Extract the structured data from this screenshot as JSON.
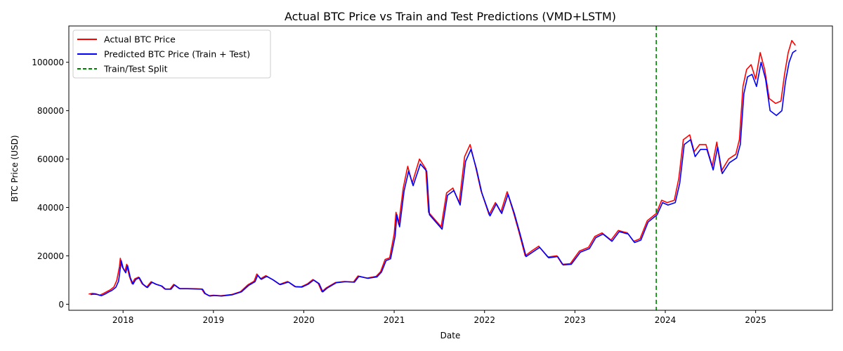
{
  "chart_data": {
    "type": "line",
    "title": "Actual BTC Price vs Train and Test Predictions (VMD+LSTM)",
    "xlabel": "Date",
    "ylabel": "BTC Price (USD)",
    "xlim": [
      2017.4,
      2025.85
    ],
    "ylim": [
      -2500,
      115000
    ],
    "x_ticks": [
      2018,
      2019,
      2020,
      2021,
      2022,
      2023,
      2024,
      2025
    ],
    "x_tick_labels": [
      "2018",
      "2019",
      "2020",
      "2021",
      "2022",
      "2023",
      "2024",
      "2025"
    ],
    "y_ticks": [
      0,
      20000,
      40000,
      60000,
      80000,
      100000
    ],
    "y_tick_labels": [
      "0",
      "20000",
      "40000",
      "60000",
      "80000",
      "100000"
    ],
    "grid": false,
    "legend_position": "top-left",
    "split": {
      "label": "Train/Test Split",
      "x": 2023.9,
      "color": "#008000"
    },
    "series": [
      {
        "name": "Actual BTC Price",
        "color": "#ff0000",
        "points": [
          [
            2017.62,
            4200
          ],
          [
            2017.66,
            4500
          ],
          [
            2017.7,
            4300
          ],
          [
            2017.74,
            3700
          ],
          [
            2017.78,
            4400
          ],
          [
            2017.82,
            5200
          ],
          [
            2017.86,
            6000
          ],
          [
            2017.9,
            7200
          ],
          [
            2017.93,
            9800
          ],
          [
            2017.96,
            15500
          ],
          [
            2017.97,
            19000
          ],
          [
            2017.99,
            15500
          ],
          [
            2018.02,
            13500
          ],
          [
            2018.04,
            16500
          ],
          [
            2018.07,
            11500
          ],
          [
            2018.1,
            8500
          ],
          [
            2018.13,
            10500
          ],
          [
            2018.17,
            11200
          ],
          [
            2018.21,
            8500
          ],
          [
            2018.26,
            7000
          ],
          [
            2018.31,
            9300
          ],
          [
            2018.36,
            8300
          ],
          [
            2018.42,
            7600
          ],
          [
            2018.46,
            6300
          ],
          [
            2018.52,
            6300
          ],
          [
            2018.56,
            8200
          ],
          [
            2018.62,
            6500
          ],
          [
            2018.7,
            6500
          ],
          [
            2018.8,
            6400
          ],
          [
            2018.87,
            6300
          ],
          [
            2018.9,
            4500
          ],
          [
            2018.95,
            3500
          ],
          [
            2019.0,
            3700
          ],
          [
            2019.08,
            3500
          ],
          [
            2019.2,
            4000
          ],
          [
            2019.3,
            5200
          ],
          [
            2019.38,
            8000
          ],
          [
            2019.45,
            9500
          ],
          [
            2019.48,
            12500
          ],
          [
            2019.52,
            10500
          ],
          [
            2019.58,
            11800
          ],
          [
            2019.65,
            10300
          ],
          [
            2019.73,
            8200
          ],
          [
            2019.82,
            9400
          ],
          [
            2019.9,
            7300
          ],
          [
            2019.97,
            7200
          ],
          [
            2020.04,
            8400
          ],
          [
            2020.1,
            10200
          ],
          [
            2020.16,
            8600
          ],
          [
            2020.2,
            5200
          ],
          [
            2020.25,
            6800
          ],
          [
            2020.35,
            9000
          ],
          [
            2020.45,
            9400
          ],
          [
            2020.55,
            9200
          ],
          [
            2020.6,
            11700
          ],
          [
            2020.7,
            10800
          ],
          [
            2020.8,
            11500
          ],
          [
            2020.85,
            13500
          ],
          [
            2020.9,
            18500
          ],
          [
            2020.95,
            19200
          ],
          [
            2021.0,
            29000
          ],
          [
            2021.02,
            38000
          ],
          [
            2021.05,
            33000
          ],
          [
            2021.1,
            48000
          ],
          [
            2021.15,
            57000
          ],
          [
            2021.2,
            50000
          ],
          [
            2021.28,
            60000
          ],
          [
            2021.35,
            56000
          ],
          [
            2021.38,
            38000
          ],
          [
            2021.45,
            35000
          ],
          [
            2021.52,
            32000
          ],
          [
            2021.58,
            46000
          ],
          [
            2021.65,
            48000
          ],
          [
            2021.72,
            42000
          ],
          [
            2021.78,
            61000
          ],
          [
            2021.84,
            66000
          ],
          [
            2021.9,
            57000
          ],
          [
            2021.96,
            47000
          ],
          [
            2022.05,
            37000
          ],
          [
            2022.12,
            42000
          ],
          [
            2022.18,
            38000
          ],
          [
            2022.25,
            46500
          ],
          [
            2022.32,
            38000
          ],
          [
            2022.38,
            30000
          ],
          [
            2022.45,
            20000
          ],
          [
            2022.52,
            22000
          ],
          [
            2022.6,
            24000
          ],
          [
            2022.7,
            19500
          ],
          [
            2022.8,
            20000
          ],
          [
            2022.86,
            16500
          ],
          [
            2022.95,
            16800
          ],
          [
            2023.05,
            22000
          ],
          [
            2023.15,
            23500
          ],
          [
            2023.22,
            28000
          ],
          [
            2023.3,
            29500
          ],
          [
            2023.4,
            26500
          ],
          [
            2023.48,
            30500
          ],
          [
            2023.58,
            29500
          ],
          [
            2023.65,
            26000
          ],
          [
            2023.72,
            27000
          ],
          [
            2023.8,
            34500
          ],
          [
            2023.9,
            37500
          ],
          [
            2023.96,
            43000
          ],
          [
            2024.02,
            42000
          ],
          [
            2024.1,
            43000
          ],
          [
            2024.15,
            52000
          ],
          [
            2024.2,
            68000
          ],
          [
            2024.27,
            70000
          ],
          [
            2024.32,
            63000
          ],
          [
            2024.38,
            66000
          ],
          [
            2024.45,
            66000
          ],
          [
            2024.52,
            57000
          ],
          [
            2024.57,
            67000
          ],
          [
            2024.62,
            55000
          ],
          [
            2024.7,
            60000
          ],
          [
            2024.78,
            62000
          ],
          [
            2024.82,
            68000
          ],
          [
            2024.86,
            90000
          ],
          [
            2024.9,
            97000
          ],
          [
            2024.95,
            99000
          ],
          [
            2025.0,
            93000
          ],
          [
            2025.05,
            104000
          ],
          [
            2025.1,
            97000
          ],
          [
            2025.15,
            85000
          ],
          [
            2025.22,
            83000
          ],
          [
            2025.28,
            84000
          ],
          [
            2025.32,
            95000
          ],
          [
            2025.36,
            104000
          ],
          [
            2025.4,
            109000
          ],
          [
            2025.44,
            107000
          ]
        ]
      },
      {
        "name": "Predicted BTC Price (Train + Test)",
        "color": "#0000ff",
        "points": [
          [
            2017.64,
            4000
          ],
          [
            2017.68,
            4200
          ],
          [
            2017.72,
            4000
          ],
          [
            2017.76,
            3500
          ],
          [
            2017.8,
            4200
          ],
          [
            2017.84,
            5000
          ],
          [
            2017.88,
            5800
          ],
          [
            2017.92,
            7000
          ],
          [
            2017.95,
            9500
          ],
          [
            2017.97,
            15000
          ],
          [
            2017.98,
            18000
          ],
          [
            2018.0,
            15000
          ],
          [
            2018.03,
            13000
          ],
          [
            2018.05,
            16000
          ],
          [
            2018.08,
            11000
          ],
          [
            2018.11,
            8300
          ],
          [
            2018.14,
            10200
          ],
          [
            2018.18,
            11000
          ],
          [
            2018.22,
            8300
          ],
          [
            2018.27,
            6900
          ],
          [
            2018.32,
            9100
          ],
          [
            2018.37,
            8200
          ],
          [
            2018.43,
            7500
          ],
          [
            2018.47,
            6200
          ],
          [
            2018.53,
            6200
          ],
          [
            2018.57,
            8000
          ],
          [
            2018.63,
            6400
          ],
          [
            2018.71,
            6400
          ],
          [
            2018.81,
            6300
          ],
          [
            2018.88,
            6200
          ],
          [
            2018.91,
            4400
          ],
          [
            2018.96,
            3400
          ],
          [
            2019.01,
            3600
          ],
          [
            2019.09,
            3400
          ],
          [
            2019.21,
            3900
          ],
          [
            2019.31,
            5100
          ],
          [
            2019.39,
            7800
          ],
          [
            2019.46,
            9300
          ],
          [
            2019.49,
            12000
          ],
          [
            2019.53,
            10300
          ],
          [
            2019.59,
            11500
          ],
          [
            2019.66,
            10100
          ],
          [
            2019.74,
            8100
          ],
          [
            2019.83,
            9200
          ],
          [
            2019.91,
            7200
          ],
          [
            2019.98,
            7100
          ],
          [
            2020.05,
            8300
          ],
          [
            2020.11,
            10000
          ],
          [
            2020.17,
            8500
          ],
          [
            2020.21,
            5100
          ],
          [
            2020.26,
            6700
          ],
          [
            2020.36,
            8900
          ],
          [
            2020.46,
            9300
          ],
          [
            2020.56,
            9100
          ],
          [
            2020.61,
            11500
          ],
          [
            2020.71,
            10700
          ],
          [
            2020.81,
            11300
          ],
          [
            2020.86,
            13300
          ],
          [
            2020.91,
            18000
          ],
          [
            2020.96,
            18800
          ],
          [
            2021.01,
            28000
          ],
          [
            2021.03,
            37000
          ],
          [
            2021.06,
            32000
          ],
          [
            2021.11,
            47000
          ],
          [
            2021.16,
            55000
          ],
          [
            2021.21,
            49000
          ],
          [
            2021.29,
            58000
          ],
          [
            2021.36,
            55000
          ],
          [
            2021.39,
            37000
          ],
          [
            2021.46,
            34000
          ],
          [
            2021.53,
            31000
          ],
          [
            2021.59,
            45000
          ],
          [
            2021.66,
            47000
          ],
          [
            2021.73,
            41000
          ],
          [
            2021.79,
            59000
          ],
          [
            2021.85,
            64000
          ],
          [
            2021.91,
            56000
          ],
          [
            2021.97,
            46000
          ],
          [
            2022.06,
            36500
          ],
          [
            2022.13,
            41500
          ],
          [
            2022.19,
            37500
          ],
          [
            2022.26,
            45500
          ],
          [
            2022.33,
            37500
          ],
          [
            2022.39,
            29500
          ],
          [
            2022.46,
            19700
          ],
          [
            2022.53,
            21500
          ],
          [
            2022.61,
            23500
          ],
          [
            2022.71,
            19200
          ],
          [
            2022.81,
            19700
          ],
          [
            2022.87,
            16200
          ],
          [
            2022.96,
            16500
          ],
          [
            2023.06,
            21500
          ],
          [
            2023.16,
            23000
          ],
          [
            2023.23,
            27500
          ],
          [
            2023.31,
            29000
          ],
          [
            2023.41,
            26000
          ],
          [
            2023.49,
            30000
          ],
          [
            2023.59,
            29000
          ],
          [
            2023.66,
            25500
          ],
          [
            2023.73,
            26500
          ],
          [
            2023.81,
            34000
          ],
          [
            2023.91,
            37000
          ],
          [
            2023.97,
            42000
          ],
          [
            2024.03,
            41000
          ],
          [
            2024.11,
            42000
          ],
          [
            2024.16,
            50000
          ],
          [
            2024.21,
            66000
          ],
          [
            2024.28,
            68000
          ],
          [
            2024.33,
            61000
          ],
          [
            2024.39,
            64000
          ],
          [
            2024.46,
            64000
          ],
          [
            2024.53,
            55500
          ],
          [
            2024.58,
            65000
          ],
          [
            2024.63,
            54000
          ],
          [
            2024.71,
            58500
          ],
          [
            2024.79,
            60500
          ],
          [
            2024.83,
            66000
          ],
          [
            2024.87,
            87000
          ],
          [
            2024.91,
            94000
          ],
          [
            2024.96,
            95000
          ],
          [
            2025.01,
            90000
          ],
          [
            2025.06,
            100000
          ],
          [
            2025.11,
            93000
          ],
          [
            2025.16,
            80000
          ],
          [
            2025.23,
            78000
          ],
          [
            2025.29,
            80000
          ],
          [
            2025.33,
            92000
          ],
          [
            2025.37,
            100000
          ],
          [
            2025.41,
            104000
          ],
          [
            2025.45,
            105000
          ]
        ]
      }
    ]
  }
}
